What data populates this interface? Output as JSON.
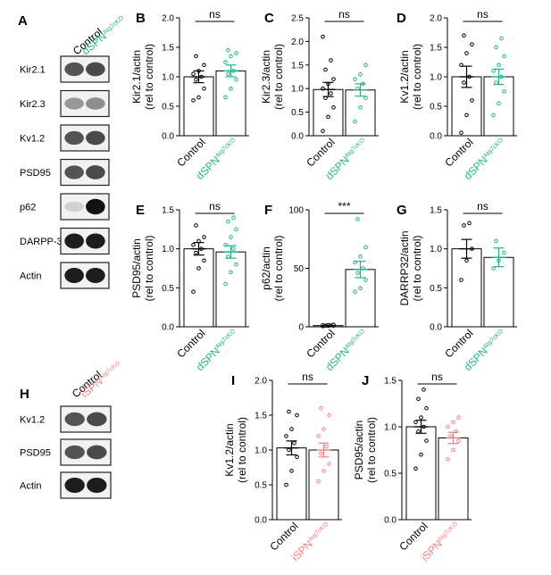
{
  "colors": {
    "control": "#000000",
    "d_ko": "#1fb38a",
    "i_ko": "#f08080",
    "blot_bg": "#cfcfcf"
  },
  "panel_a": {
    "letter": "A",
    "col_control": "Control",
    "col_ko_base": "dSPN",
    "col_ko_sup": "Atg7cKO",
    "rows": [
      "Kir2.1",
      "Kir2.3",
      "Kv1.2",
      "PSD95",
      "p62",
      "DARPP-32",
      "Actin"
    ]
  },
  "panel_h": {
    "letter": "H",
    "col_control": "Control",
    "col_ko_base": "iSPN",
    "col_ko_sup": "Atg7cKO",
    "rows": [
      "Kv1.2",
      "PSD95",
      "Actin"
    ]
  },
  "chart_data": [
    {
      "id": "B",
      "type": "bar",
      "ylabel": "Kir2.1/actin",
      "ylabel2": "(rel to control)",
      "categories": [
        "Control",
        "dSPN Atg7cKO"
      ],
      "values": [
        1.0,
        1.1
      ],
      "errors": [
        0.1,
        0.1
      ],
      "ylim": [
        0,
        2.0
      ],
      "yticks": [
        "0.0",
        "0.5",
        "1.0",
        "1.5",
        "2.0"
      ],
      "significance": "ns",
      "ko_color": "d_ko",
      "xlabel_control": "Control",
      "xlabel_ko_base": "dSPN",
      "xlabel_ko_sup": "Atg7cKO",
      "points": [
        [
          0.6,
          0.65,
          0.8,
          0.95,
          1.0,
          1.05,
          1.1,
          1.2,
          1.35
        ],
        [
          0.65,
          0.8,
          0.95,
          1.05,
          1.1,
          1.25,
          1.35,
          1.4,
          1.45
        ]
      ]
    },
    {
      "id": "C",
      "type": "bar",
      "ylabel": "Kir2.3/actin",
      "ylabel2": "(rel to control)",
      "categories": [
        "Control",
        "dSPN Atg7cKO"
      ],
      "values": [
        0.98,
        0.97
      ],
      "errors": [
        0.15,
        0.13
      ],
      "ylim": [
        0,
        2.5
      ],
      "yticks": [
        "0.0",
        "0.5",
        "1.0",
        "1.5",
        "2.0",
        "2.5"
      ],
      "significance": "ns",
      "ko_color": "d_ko",
      "xlabel_control": "Control",
      "xlabel_ko_base": "dSPN",
      "xlabel_ko_sup": "Atg7cKO",
      "points": [
        [
          0.1,
          0.4,
          0.6,
          0.8,
          0.9,
          1.0,
          1.1,
          1.2,
          1.4,
          1.6,
          2.1
        ],
        [
          0.3,
          0.6,
          0.8,
          1.0,
          1.1,
          1.2,
          1.3,
          1.5
        ]
      ]
    },
    {
      "id": "D",
      "type": "bar",
      "ylabel": "Kv1.2/actin",
      "ylabel2": "(rel to control)",
      "categories": [
        "Control",
        "dSPN Atg7cKO"
      ],
      "values": [
        1.0,
        1.0
      ],
      "errors": [
        0.18,
        0.13
      ],
      "ylim": [
        0,
        2.0
      ],
      "yticks": [
        "0.0",
        "0.5",
        "1.0",
        "1.5",
        "2.0"
      ],
      "significance": "ns",
      "ko_color": "d_ko",
      "xlabel_control": "Control",
      "xlabel_ko_base": "dSPN",
      "xlabel_ko_sup": "Atg7cKO",
      "points": [
        [
          0.05,
          0.35,
          0.6,
          0.9,
          1.0,
          1.2,
          1.4,
          1.55,
          1.7
        ],
        [
          0.35,
          0.55,
          0.75,
          0.9,
          1.0,
          1.1,
          1.2,
          1.35,
          1.5,
          1.65
        ]
      ]
    },
    {
      "id": "E",
      "type": "bar",
      "ylabel": "PSD95/actin",
      "ylabel2": "(rel to control)",
      "categories": [
        "Control",
        "dSPN Atg7cKO"
      ],
      "values": [
        1.0,
        0.96
      ],
      "errors": [
        0.08,
        0.08
      ],
      "ylim": [
        0,
        1.5
      ],
      "yticks": [
        "0.0",
        "0.5",
        "1.0",
        "1.5"
      ],
      "significance": "ns",
      "ko_color": "d_ko",
      "xlabel_control": "Control",
      "xlabel_ko_base": "dSPN",
      "xlabel_ko_sup": "Atg7cKO",
      "points": [
        [
          0.45,
          0.75,
          0.85,
          0.95,
          1.0,
          1.05,
          1.1,
          1.15,
          1.3
        ],
        [
          0.55,
          0.7,
          0.8,
          0.9,
          1.0,
          1.05,
          1.15,
          1.25,
          1.35,
          1.4
        ]
      ]
    },
    {
      "id": "F",
      "type": "bar",
      "ylabel": "p62/actin",
      "ylabel2": "(rel to control)",
      "categories": [
        "Control",
        "dSPN Atg7cKO"
      ],
      "values": [
        1.0,
        49
      ],
      "errors": [
        0.3,
        7
      ],
      "ylim": [
        0,
        100
      ],
      "yticks": [
        "0",
        "50",
        "100"
      ],
      "significance": "***",
      "ko_color": "d_ko",
      "xlabel_control": "Control",
      "xlabel_ko_base": "dSPN",
      "xlabel_ko_sup": "Atg7cKO",
      "points": [
        [
          0.5,
          0.8,
          1.0,
          1.0,
          1.2,
          1.3,
          1.5,
          1.8
        ],
        [
          30,
          33,
          40,
          46,
          50,
          55,
          60,
          68,
          92
        ]
      ]
    },
    {
      "id": "G",
      "type": "bar",
      "ylabel": "DARRP32/actin",
      "ylabel2": "(rel to control)",
      "categories": [
        "Control",
        "dSPN Atg7cKO"
      ],
      "values": [
        1.0,
        0.89
      ],
      "errors": [
        0.12,
        0.12
      ],
      "ylim": [
        0,
        1.5
      ],
      "yticks": [
        "0.0",
        "0.5",
        "1.0",
        "1.5"
      ],
      "significance": "ns",
      "ko_color": "d_ko",
      "xlabel_control": "Control",
      "xlabel_ko_base": "dSPN",
      "xlabel_ko_sup": "Atg7cKO",
      "points": [
        [
          0.6,
          0.85,
          1.0,
          1.3,
          1.33
        ],
        [
          0.75,
          0.85,
          0.95,
          1.1
        ]
      ]
    },
    {
      "id": "I",
      "type": "bar",
      "ylabel": "Kv1.2/actin",
      "ylabel2": "(rel to control)",
      "categories": [
        "Control",
        "iSPN Atg7cKO"
      ],
      "values": [
        1.03,
        1.0
      ],
      "errors": [
        0.1,
        0.1
      ],
      "ylim": [
        0,
        2.0
      ],
      "yticks": [
        "0.0",
        "0.5",
        "1.0",
        "1.5",
        "2.0"
      ],
      "significance": "ns",
      "ko_color": "i_ko",
      "xlabel_control": "Control",
      "xlabel_ko_base": "iSPN",
      "xlabel_ko_sup": "Atg7cKO",
      "points": [
        [
          0.5,
          0.7,
          0.9,
          1.0,
          1.1,
          1.2,
          1.3,
          1.5,
          1.55
        ],
        [
          0.55,
          0.7,
          0.8,
          0.95,
          1.05,
          1.2,
          1.3,
          1.5,
          1.6
        ]
      ]
    },
    {
      "id": "J",
      "type": "bar",
      "ylabel": "PSD95/actin",
      "ylabel2": "(rel to control)",
      "categories": [
        "Control",
        "iSPN Atg7cKO"
      ],
      "values": [
        1.0,
        0.88
      ],
      "errors": [
        0.07,
        0.06
      ],
      "ylim": [
        0,
        1.5
      ],
      "yticks": [
        "0.0",
        "0.5",
        "1.0",
        "1.5"
      ],
      "significance": "ns",
      "ko_color": "i_ko",
      "xlabel_control": "Control",
      "xlabel_ko_base": "iSPN",
      "xlabel_ko_sup": "Atg7cKO",
      "points": [
        [
          0.55,
          0.7,
          0.85,
          0.95,
          1.0,
          1.05,
          1.1,
          1.2,
          1.3,
          1.4
        ],
        [
          0.65,
          0.75,
          0.85,
          0.9,
          0.95,
          1.0,
          1.05,
          1.1
        ]
      ]
    }
  ]
}
